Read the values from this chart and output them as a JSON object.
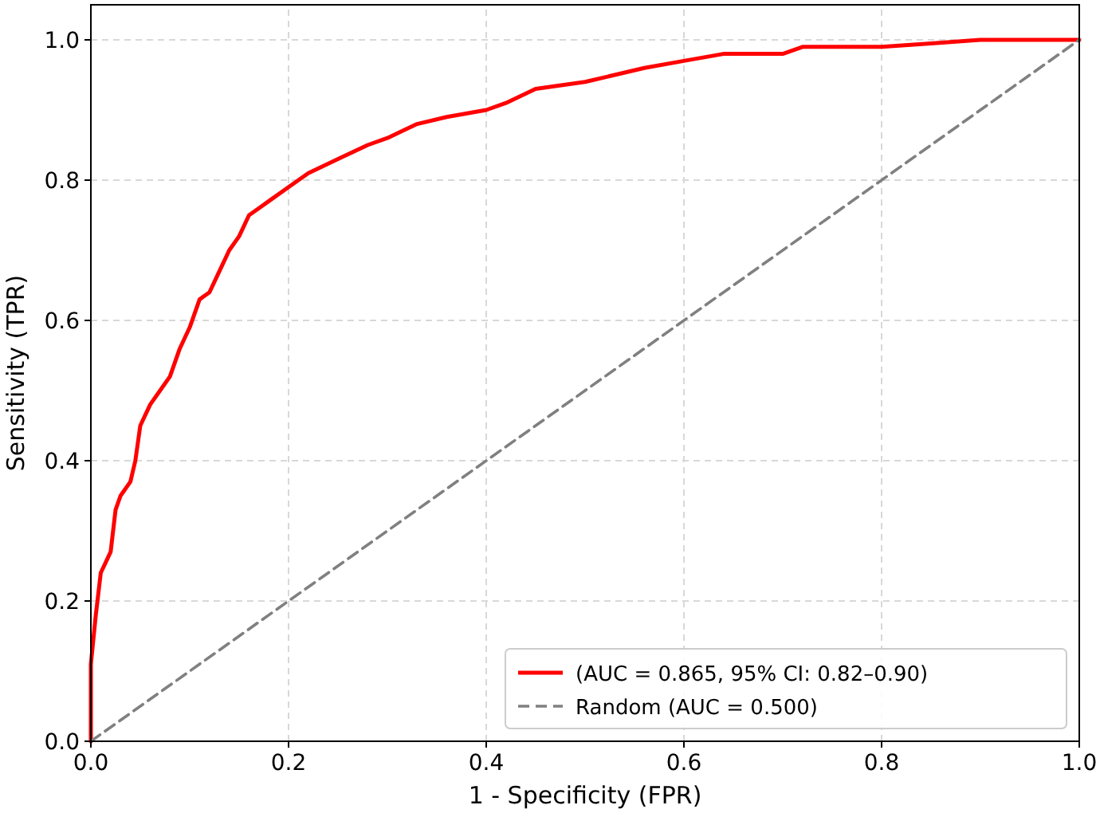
{
  "chart_data": {
    "type": "line",
    "xlabel": "1 - Specificity (FPR)",
    "ylabel": "Sensitivity (TPR)",
    "xlim": [
      0,
      1
    ],
    "ylim": [
      0,
      1.05
    ],
    "xticks": [
      {
        "value": 0,
        "label": "0.0"
      },
      {
        "value": 0.2,
        "label": "0.2"
      },
      {
        "value": 0.4,
        "label": "0.4"
      },
      {
        "value": 0.6,
        "label": "0.6"
      },
      {
        "value": 0.8,
        "label": "0.8"
      },
      {
        "value": 1,
        "label": "1.0"
      }
    ],
    "yticks": [
      {
        "value": 0,
        "label": "0.0"
      },
      {
        "value": 0.2,
        "label": "0.2"
      },
      {
        "value": 0.4,
        "label": "0.4"
      },
      {
        "value": 0.6,
        "label": "0.6"
      },
      {
        "value": 0.8,
        "label": "0.8"
      },
      {
        "value": 1,
        "label": "1.0"
      }
    ],
    "grid": true,
    "legend": "bottom right",
    "marker": "none",
    "series": [
      {
        "name": "(AUC = 0.865, 95% CI: 0.82–0.90)",
        "color": "#ff0000",
        "line_style": "solid",
        "x": [
          0,
          0,
          0.005,
          0.01,
          0.02,
          0.025,
          0.03,
          0.04,
          0.045,
          0.05,
          0.06,
          0.07,
          0.08,
          0.09,
          0.1,
          0.11,
          0.12,
          0.13,
          0.14,
          0.15,
          0.16,
          0.17,
          0.18,
          0.2,
          0.22,
          0.25,
          0.28,
          0.3,
          0.33,
          0.36,
          0.4,
          0.42,
          0.45,
          0.5,
          0.53,
          0.56,
          0.6,
          0.64,
          0.7,
          0.72,
          0.76,
          0.8,
          0.85,
          0.9,
          1
        ],
        "values": [
          0,
          0.11,
          0.18,
          0.24,
          0.27,
          0.33,
          0.35,
          0.37,
          0.4,
          0.45,
          0.48,
          0.5,
          0.52,
          0.56,
          0.59,
          0.63,
          0.64,
          0.67,
          0.7,
          0.72,
          0.75,
          0.76,
          0.77,
          0.79,
          0.81,
          0.83,
          0.85,
          0.86,
          0.88,
          0.89,
          0.9,
          0.91,
          0.93,
          0.94,
          0.95,
          0.96,
          0.97,
          0.98,
          0.98,
          0.99,
          0.99,
          0.99,
          0.995,
          1,
          1
        ]
      },
      {
        "name": "Random (AUC = 0.500)",
        "color": "#808080",
        "line_style": "dashed",
        "x": [
          0,
          1
        ],
        "values": [
          0,
          1
        ]
      }
    ]
  }
}
